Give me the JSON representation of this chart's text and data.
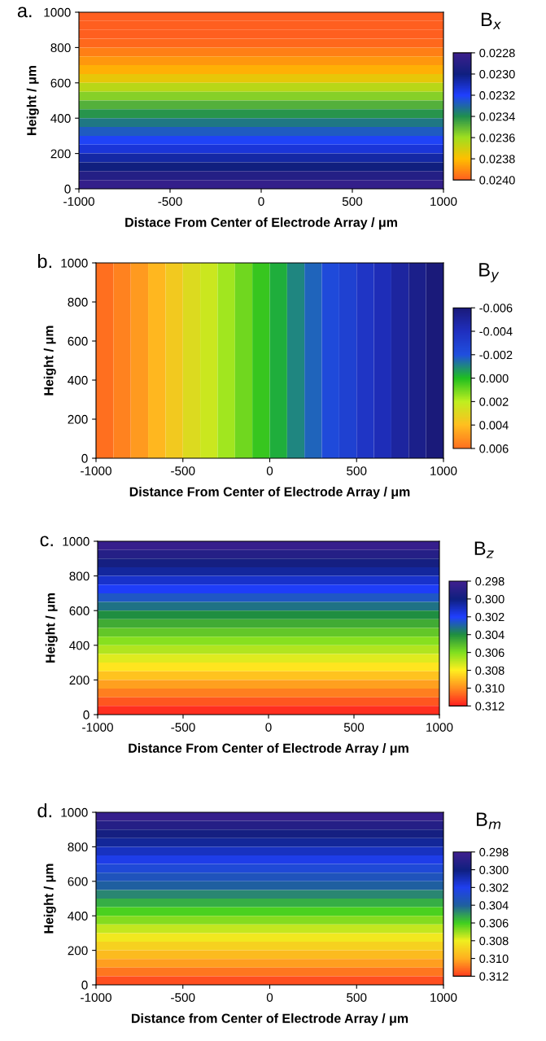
{
  "chart_data": [
    {
      "type": "heatmap",
      "title": "a.",
      "xlabel": "Distace From Center of Electrode Array / μm",
      "ylabel": "Height / μm",
      "clabel": "B$_{x}$",
      "grid": false,
      "xlim": [
        -1000,
        1000
      ],
      "ylim": [
        0,
        1000
      ],
      "xticks": [
        -1000,
        -500,
        0,
        500,
        1000
      ],
      "yticks": [
        0,
        200,
        400,
        600,
        800,
        1000
      ],
      "clim": [
        0.0228,
        0.024
      ],
      "cticks": [
        {
          "value": 0.0228,
          "label": "0.0228"
        },
        {
          "value": 0.023,
          "label": "0.0230"
        },
        {
          "value": 0.0232,
          "label": "0.0232"
        },
        {
          "value": 0.0234,
          "label": "0.0234"
        },
        {
          "value": 0.0236,
          "label": "0.0236"
        },
        {
          "value": 0.0238,
          "label": "0.0238"
        },
        {
          "value": 0.024,
          "label": "0.0240"
        }
      ],
      "colors": [
        "#3c1f8c",
        "#0f1f7f",
        "#1f3fff",
        "#1f8f4f",
        "#9fdf1f",
        "#ffbf00",
        "#ff5f1f"
      ],
      "cells": [
        [
          0.02409
        ],
        [
          0.02405
        ],
        [
          0.02401
        ],
        [
          0.02398
        ],
        [
          0.02393
        ],
        [
          0.02388
        ],
        [
          0.02383
        ],
        [
          0.02375
        ],
        [
          0.02365
        ],
        [
          0.02356
        ],
        [
          0.02348
        ],
        [
          0.02341
        ],
        [
          0.02334
        ],
        [
          0.02327
        ],
        [
          0.02321
        ],
        [
          0.02314
        ],
        [
          0.02306
        ],
        [
          0.023
        ],
        [
          0.02291
        ],
        [
          0.02284
        ]
      ]
    },
    {
      "type": "heatmap",
      "title": "b.",
      "xlabel": "Distance From Center of Electrode Array / μm",
      "ylabel": "Height / μm",
      "clabel": "B$_{y}$",
      "grid": false,
      "xlim": [
        -1000,
        1000
      ],
      "ylim": [
        0,
        1000
      ],
      "xticks": [
        -1000,
        -500,
        0,
        500,
        1000
      ],
      "yticks": [
        0,
        200,
        400,
        600,
        800,
        1000
      ],
      "clim": [
        -0.006,
        0.006
      ],
      "cticks": [
        {
          "value": -0.006,
          "label": "-0.006"
        },
        {
          "value": -0.004,
          "label": "-0.004"
        },
        {
          "value": -0.002,
          "label": "-0.002"
        },
        {
          "value": 0.0,
          "label": "0.000"
        },
        {
          "value": 0.002,
          "label": "0.002"
        },
        {
          "value": 0.004,
          "label": "0.004"
        },
        {
          "value": 0.006,
          "label": "0.006"
        }
      ],
      "colors": [
        "#1a1a7a",
        "#1f2fbf",
        "#1f4fdf",
        "#1fbf1f",
        "#bfef1f",
        "#ffbf1f",
        "#ff6f1f"
      ],
      "cells": [
        [
          0.0062,
          0.0055,
          0.0049,
          0.0042,
          0.0036,
          0.0029,
          0.0023,
          0.0016,
          0.001,
          0.0003,
          -0.0003,
          -0.001,
          -0.0016,
          -0.0023,
          -0.0029,
          -0.0036,
          -0.0042,
          -0.0049,
          -0.0055,
          -0.0062
        ]
      ]
    },
    {
      "type": "heatmap",
      "title": "c.",
      "xlabel": "Distance From Center of Electrode Array / μm",
      "ylabel": "Height / μm",
      "clabel": "B$_{z}$",
      "grid": false,
      "xlim": [
        -1000,
        1000
      ],
      "ylim": [
        0,
        1000
      ],
      "xticks": [
        -1000,
        -500,
        0,
        500,
        1000
      ],
      "yticks": [
        0,
        200,
        400,
        600,
        800,
        1000
      ],
      "clim": [
        0.298,
        0.312
      ],
      "cticks": [
        {
          "value": 0.298,
          "label": "0.298"
        },
        {
          "value": 0.3,
          "label": "0.300"
        },
        {
          "value": 0.302,
          "label": "0.302"
        },
        {
          "value": 0.304,
          "label": "0.304"
        },
        {
          "value": 0.306,
          "label": "0.306"
        },
        {
          "value": 0.308,
          "label": "0.308"
        },
        {
          "value": 0.31,
          "label": "0.310"
        },
        {
          "value": 0.312,
          "label": "0.312"
        }
      ],
      "colors": [
        "#3f1f8f",
        "#0f1f7f",
        "#1f3fff",
        "#1f8f3f",
        "#7fdf1f",
        "#ffef1f",
        "#ff8f1f",
        "#ff1f1f"
      ],
      "cells": [
        [
          0.2984
        ],
        [
          0.2991
        ],
        [
          0.2998
        ],
        [
          0.3005
        ],
        [
          0.3012
        ],
        [
          0.3019
        ],
        [
          0.3026
        ],
        [
          0.3033
        ],
        [
          0.304
        ],
        [
          0.3047
        ],
        [
          0.3054
        ],
        [
          0.3061
        ],
        [
          0.3068
        ],
        [
          0.3075
        ],
        [
          0.3082
        ],
        [
          0.3089
        ],
        [
          0.3096
        ],
        [
          0.3103
        ],
        [
          0.311
        ],
        [
          0.3117
        ]
      ]
    },
    {
      "type": "heatmap",
      "title": "d.",
      "xlabel": "Distance from Center of Electrode Array / μm",
      "ylabel": "Height / μm",
      "clabel": "B$_{m}$",
      "grid": false,
      "xlim": [
        -1000,
        1000
      ],
      "ylim": [
        0,
        1000
      ],
      "xticks": [
        -1000,
        -500,
        0,
        500,
        1000
      ],
      "yticks": [
        0,
        200,
        400,
        600,
        800,
        1000
      ],
      "clim": [
        0.298,
        0.312
      ],
      "cticks": [
        {
          "value": 0.298,
          "label": "0.298"
        },
        {
          "value": 0.3,
          "label": "0.300"
        },
        {
          "value": 0.302,
          "label": "0.302"
        },
        {
          "value": 0.304,
          "label": "0.304"
        },
        {
          "value": 0.306,
          "label": "0.306"
        },
        {
          "value": 0.308,
          "label": "0.308"
        },
        {
          "value": 0.31,
          "label": "0.310"
        },
        {
          "value": 0.312,
          "label": "0.312"
        }
      ],
      "colors": [
        "#3f1f8f",
        "#0f1f7f",
        "#1f3fef",
        "#1f5f9f",
        "#3fcf1f",
        "#efef1f",
        "#ffaf1f",
        "#ff3f1f"
      ],
      "cells": [
        [
          0.2984
        ],
        [
          0.2991
        ],
        [
          0.2998
        ],
        [
          0.3005
        ],
        [
          0.3012
        ],
        [
          0.3019
        ],
        [
          0.3026
        ],
        [
          0.3033
        ],
        [
          0.304
        ],
        [
          0.3047
        ],
        [
          0.3054
        ],
        [
          0.3061
        ],
        [
          0.3068
        ],
        [
          0.3075
        ],
        [
          0.3082
        ],
        [
          0.3089
        ],
        [
          0.3096
        ],
        [
          0.3103
        ],
        [
          0.311
        ],
        [
          0.3117
        ]
      ]
    }
  ]
}
